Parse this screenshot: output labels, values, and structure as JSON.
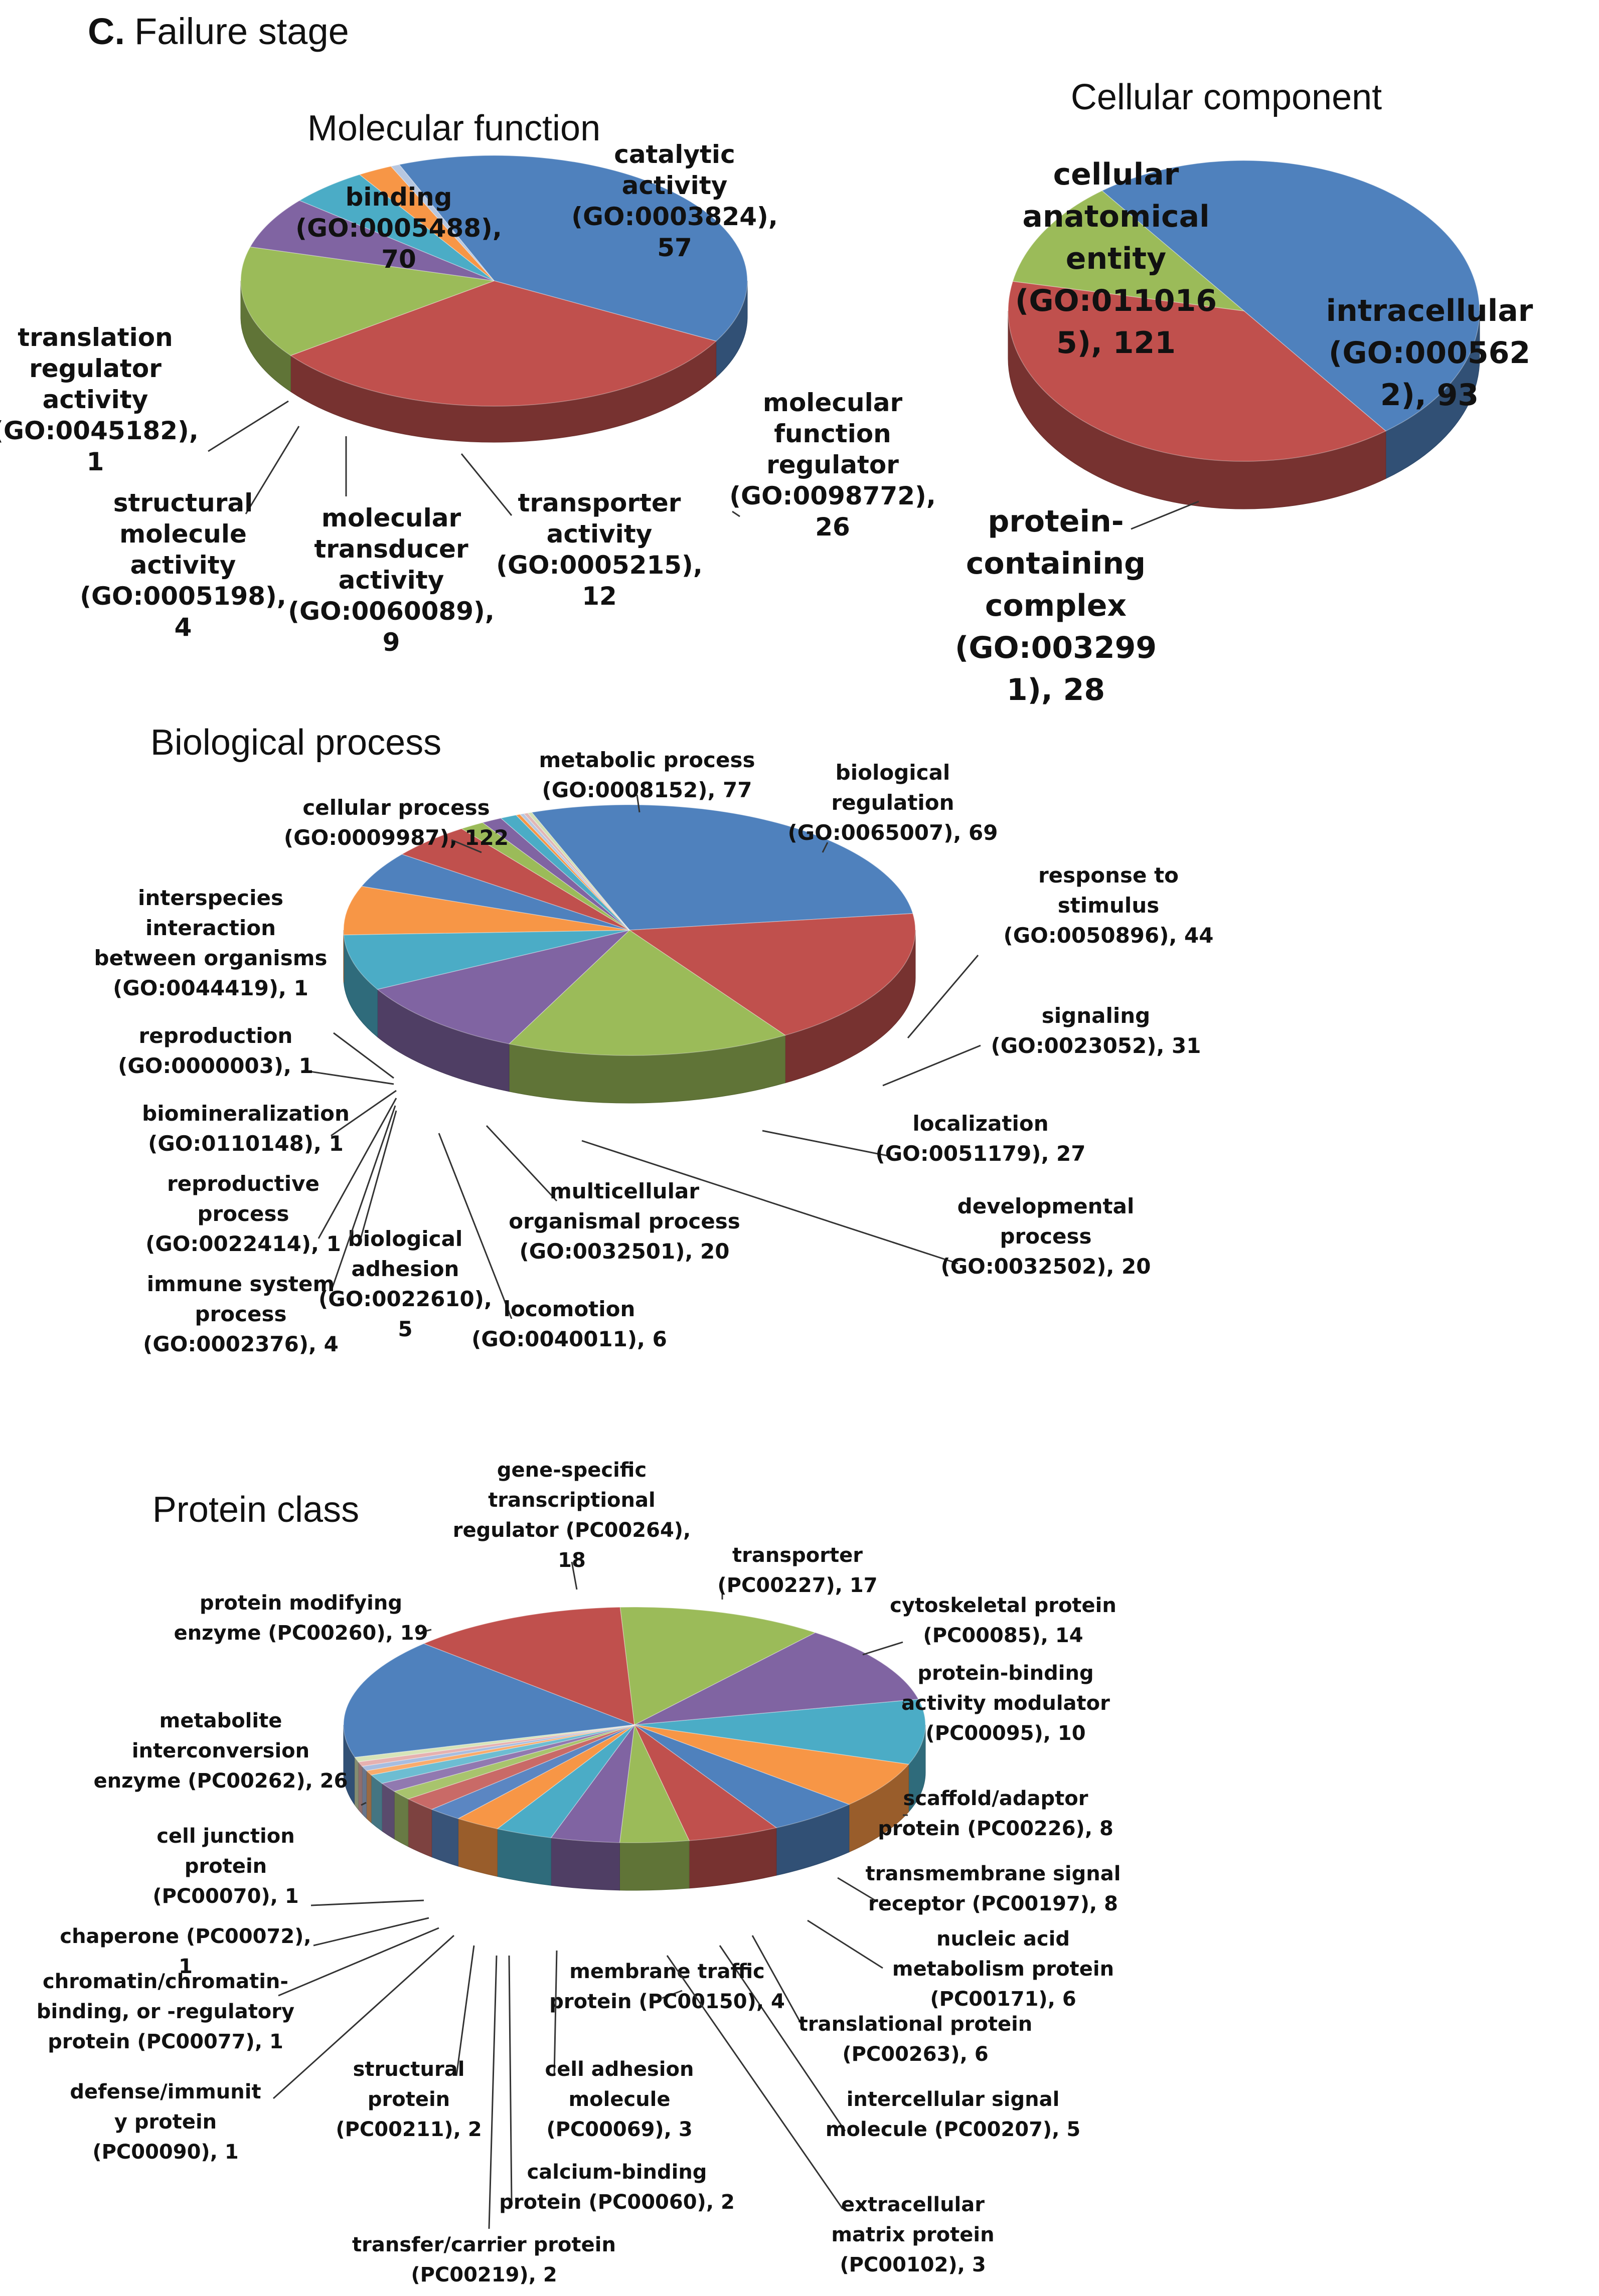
{
  "panel_letter": "C.",
  "panel_heading": "Failure stage",
  "chart_data": [
    {
      "type": "pie",
      "title": "Molecular function",
      "slices": [
        {
          "label": "binding (GO:0005488), 70",
          "value": 70,
          "color": "#4f81bd"
        },
        {
          "label": "catalytic activity (GO:0003824), 57",
          "value": 57,
          "color": "#c0504d"
        },
        {
          "label": "molecular function regulator (GO:0098772), 26",
          "value": 26,
          "color": "#9bbb59"
        },
        {
          "label": "transporter activity (GO:0005215), 12",
          "value": 12,
          "color": "#8064a2"
        },
        {
          "label": "molecular transducer activity (GO:0060089), 9",
          "value": 9,
          "color": "#4bacc6"
        },
        {
          "label": "structural molecule activity (GO:0005198), 4",
          "value": 4,
          "color": "#f79646"
        },
        {
          "label": "translation regulator activity (GO:0045182), 1",
          "value": 1,
          "color": "#b7c7e0"
        }
      ]
    },
    {
      "type": "pie",
      "title": "Cellular component",
      "slices": [
        {
          "label": "cellular anatomical entity (GO:0110165), 121",
          "value": 121,
          "color": "#4f81bd"
        },
        {
          "label": "intracellular (GO:0005622), 93",
          "value": 93,
          "color": "#c0504d"
        },
        {
          "label": "protein-containing complex (GO:0032991), 28",
          "value": 28,
          "color": "#9bbb59"
        }
      ]
    },
    {
      "type": "pie",
      "title": "Biological process",
      "slices": [
        {
          "label": "cellular process (GO:0009987), 122",
          "value": 122,
          "color": "#4f81bd"
        },
        {
          "label": "metabolic process (GO:0008152), 77",
          "value": 77,
          "color": "#c0504d"
        },
        {
          "label": "biological regulation (GO:0065007), 69",
          "value": 69,
          "color": "#9bbb59"
        },
        {
          "label": "response to stimulus (GO:0050896), 44",
          "value": 44,
          "color": "#8064a2"
        },
        {
          "label": "signaling (GO:0023052), 31",
          "value": 31,
          "color": "#4bacc6"
        },
        {
          "label": "localization (GO:0051179), 27",
          "value": 27,
          "color": "#f79646"
        },
        {
          "label": "developmental process (GO:0032502), 20",
          "value": 20,
          "color": "#4f81bd"
        },
        {
          "label": "multicellular organismal process (GO:0032501), 20",
          "value": 20,
          "color": "#c0504d"
        },
        {
          "label": "locomotion (GO:0040011), 6",
          "value": 6,
          "color": "#9bbb59"
        },
        {
          "label": "biological adhesion (GO:0022610), 5",
          "value": 5,
          "color": "#8064a2"
        },
        {
          "label": "immune system process (GO:0002376), 4",
          "value": 4,
          "color": "#4bacc6"
        },
        {
          "label": "reproductive process (GO:0022414), 1",
          "value": 1,
          "color": "#f79646"
        },
        {
          "label": "biomineralization (GO:0110148), 1",
          "value": 1,
          "color": "#b7c7e0"
        },
        {
          "label": "reproduction (GO:0000003), 1",
          "value": 1,
          "color": "#e0b7b6"
        },
        {
          "label": "interspecies interaction between organisms (GO:0044419), 1",
          "value": 1,
          "color": "#d1dfb3"
        }
      ]
    },
    {
      "type": "pie",
      "title": "Protein class",
      "slices": [
        {
          "label": "metabolite interconversion enzyme (PC00262), 26",
          "value": 26,
          "color": "#4f81bd"
        },
        {
          "label": "protein modifying enzyme (PC00260), 19",
          "value": 19,
          "color": "#c0504d"
        },
        {
          "label": "gene-specific transcriptional regulator (PC00264), 18",
          "value": 18,
          "color": "#9bbb59"
        },
        {
          "label": "transporter (PC00227), 17",
          "value": 17,
          "color": "#8064a2"
        },
        {
          "label": "cytoskeletal protein (PC00085), 14",
          "value": 14,
          "color": "#4bacc6"
        },
        {
          "label": "protein-binding activity modulator (PC00095), 10",
          "value": 10,
          "color": "#f79646"
        },
        {
          "label": "scaffold/adaptor protein (PC00226), 8",
          "value": 8,
          "color": "#4f81bd"
        },
        {
          "label": "transmembrane signal receptor (PC00197), 8",
          "value": 8,
          "color": "#c0504d"
        },
        {
          "label": "nucleic acid metabolism protein (PC00171), 6",
          "value": 6,
          "color": "#9bbb59"
        },
        {
          "label": "translational protein (PC00263), 6",
          "value": 6,
          "color": "#8064a2"
        },
        {
          "label": "intercellular signal molecule (PC00207), 5",
          "value": 5,
          "color": "#4bacc6"
        },
        {
          "label": "membrane traffic protein (PC00150), 4",
          "value": 4,
          "color": "#f79646"
        },
        {
          "label": "extracellular matrix protein (PC00102), 3",
          "value": 3,
          "color": "#5b86c2"
        },
        {
          "label": "cell adhesion molecule (PC00069), 3",
          "value": 3,
          "color": "#c96a67"
        },
        {
          "label": "calcium-binding protein (PC00060), 2",
          "value": 2,
          "color": "#a8c46d"
        },
        {
          "label": "transfer/carrier protein (PC00219), 2",
          "value": 2,
          "color": "#9179b0"
        },
        {
          "label": "structural protein (PC00211), 2",
          "value": 2,
          "color": "#6dbdd2"
        },
        {
          "label": "defense/immunity protein (PC00090), 1",
          "value": 1,
          "color": "#f9ab6b"
        },
        {
          "label": "chromatin/chromatin-binding, or -regulatory protein (PC00077), 1",
          "value": 1,
          "color": "#a7bde0"
        },
        {
          "label": "chaperone (PC00072), 1",
          "value": 1,
          "color": "#e6b1b0"
        },
        {
          "label": "cell junction protein (PC00070), 1",
          "value": 1,
          "color": "#d7e4b8"
        }
      ]
    }
  ],
  "labels": {
    "mf": [
      [
        "binding",
        "(GO:0005488),",
        "70"
      ],
      [
        "catalytic",
        "activity",
        "(GO:0003824),",
        "57"
      ],
      [
        "molecular",
        "function",
        "regulator",
        "(GO:0098772),",
        "26"
      ],
      [
        "transporter",
        "activity",
        "(GO:0005215),",
        "12"
      ],
      [
        "molecular",
        "transducer",
        "activity",
        "(GO:0060089),",
        "9"
      ],
      [
        "structural",
        "molecule",
        "activity",
        "(GO:0005198),",
        "4"
      ],
      [
        "translation",
        "regulator",
        "activity",
        "(GO:0045182),",
        "1"
      ]
    ],
    "cc": [
      [
        "cellular",
        "anatomical",
        "entity",
        "(GO:011016",
        "5), 121"
      ],
      [
        "intracellular",
        "(GO:000562",
        "2), 93"
      ],
      [
        "protein-",
        "containing",
        "complex",
        "(GO:003299",
        "1), 28"
      ]
    ],
    "bp": [
      [
        "cellular process",
        "(GO:0009987), 122"
      ],
      [
        "metabolic process",
        "(GO:0008152), 77"
      ],
      [
        "biological",
        "regulation",
        "(GO:0065007), 69"
      ],
      [
        "response to",
        "stimulus",
        "(GO:0050896), 44"
      ],
      [
        "signaling",
        "(GO:0023052), 31"
      ],
      [
        "localization",
        "(GO:0051179), 27"
      ],
      [
        "developmental",
        "process",
        "(GO:0032502), 20"
      ],
      [
        "multicellular",
        "organismal process",
        "(GO:0032501), 20"
      ],
      [
        "locomotion",
        "(GO:0040011), 6"
      ],
      [
        "biological",
        "adhesion",
        "(GO:0022610),",
        "5"
      ],
      [
        "immune system",
        "process",
        "(GO:0002376), 4"
      ],
      [
        "reproductive",
        "process",
        "(GO:0022414), 1"
      ],
      [
        "biomineralization",
        "(GO:0110148), 1"
      ],
      [
        "reproduction",
        "(GO:0000003), 1"
      ],
      [
        "interspecies",
        "interaction",
        "between organisms",
        "(GO:0044419), 1"
      ]
    ],
    "pc": [
      [
        "metabolite",
        "interconversion",
        "enzyme (PC00262), 26"
      ],
      [
        "protein modifying",
        "enzyme (PC00260), 19"
      ],
      [
        "gene-specific",
        "transcriptional",
        "regulator (PC00264),",
        "18"
      ],
      [
        "transporter",
        "(PC00227), 17"
      ],
      [
        "cytoskeletal protein",
        "(PC00085), 14"
      ],
      [
        "protein-binding",
        "activity modulator",
        "(PC00095), 10"
      ],
      [
        "scaffold/adaptor",
        "protein (PC00226), 8"
      ],
      [
        "transmembrane signal",
        "receptor (PC00197), 8"
      ],
      [
        "nucleic acid",
        "metabolism protein",
        "(PC00171), 6"
      ],
      [
        "translational protein",
        "(PC00263), 6"
      ],
      [
        "intercellular signal",
        "molecule (PC00207), 5"
      ],
      [
        "membrane traffic",
        "protein (PC00150), 4"
      ],
      [
        "extracellular",
        "matrix protein",
        "(PC00102), 3"
      ],
      [
        "cell adhesion",
        "molecule",
        "(PC00069), 3"
      ],
      [
        "calcium-binding",
        "protein (PC00060), 2"
      ],
      [
        "transfer/carrier protein",
        "(PC00219), 2"
      ],
      [
        "structural",
        "protein",
        "(PC00211), 2"
      ],
      [
        "defense/immunit",
        "y protein",
        "(PC00090), 1"
      ],
      [
        "chromatin/chromatin-",
        "binding, or -regulatory",
        "protein (PC00077), 1"
      ],
      [
        "chaperone (PC00072),",
        "1"
      ],
      [
        "cell junction",
        "protein",
        "(PC00070), 1"
      ]
    ]
  }
}
